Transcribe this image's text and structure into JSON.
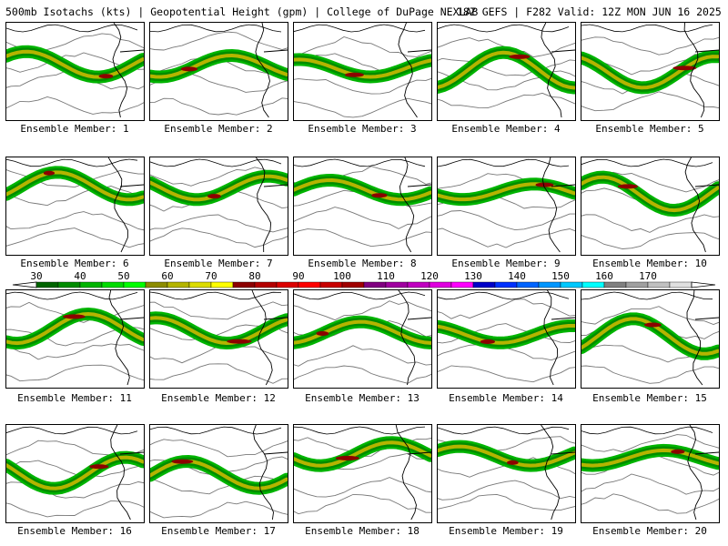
{
  "header": {
    "left": "500mb Isotachs (kts) | Geopotential Height (gpm) | College of DuPage NEXLAB",
    "right": "18Z GEFS | F282 Valid: 12Z MON JUN 16 2025"
  },
  "members": [
    "Ensemble Member: 1",
    "Ensemble Member: 2",
    "Ensemble Member: 3",
    "Ensemble Member: 4",
    "Ensemble Member: 5",
    "Ensemble Member: 6",
    "Ensemble Member: 7",
    "Ensemble Member: 8",
    "Ensemble Member: 9",
    "Ensemble Member: 10",
    "Ensemble Member: 11",
    "Ensemble Member: 12",
    "Ensemble Member: 13",
    "Ensemble Member: 14",
    "Ensemble Member: 15",
    "Ensemble Member: 16",
    "Ensemble Member: 17",
    "Ensemble Member: 18",
    "Ensemble Member: 19",
    "Ensemble Member: 20"
  ],
  "colorbar": {
    "labels": [
      "30",
      "40",
      "50",
      "60",
      "70",
      "80",
      "90",
      "100",
      "110",
      "120",
      "130",
      "140",
      "150",
      "160",
      "170"
    ],
    "colors": [
      "#006400",
      "#008c00",
      "#00b400",
      "#00dc00",
      "#00ff00",
      "#8c8c00",
      "#b4b400",
      "#dcdc00",
      "#ffff00",
      "#8c0000",
      "#b40000",
      "#dc0000",
      "#ff0000",
      "#c80000",
      "#a00000",
      "#800080",
      "#a000a0",
      "#c000c0",
      "#e000e0",
      "#ff00ff",
      "#0000c8",
      "#0032ff",
      "#0064ff",
      "#0096ff",
      "#00c8ff",
      "#00ffff",
      "#808080",
      "#a0a0a0",
      "#c0c0c0",
      "#e0e0e0"
    ]
  },
  "jet_colors": {
    "weak": "#00b400",
    "moderate": "#008c00",
    "strong": "#b4b400",
    "core": "#8c0000"
  }
}
